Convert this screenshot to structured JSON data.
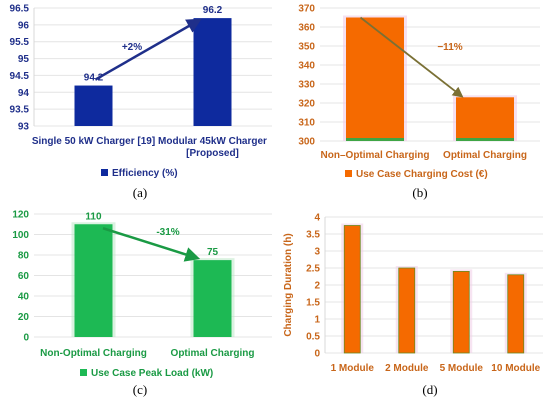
{
  "chart_data": [
    {
      "type": "bar",
      "panel_caption": "(a)",
      "categories": [
        "Single 50 kW Charger [19]",
        "Modular 45kW Charger [Proposed]"
      ],
      "category_lines": [
        [
          "Single 50 kW Charger [19]"
        ],
        [
          "Modular 45kW Charger",
          "[Proposed]"
        ]
      ],
      "series": [
        {
          "name": "Efficiency (%)",
          "values": [
            94.2,
            96.2
          ]
        }
      ],
      "data_labels": [
        "94.2",
        "96.2"
      ],
      "ylim": [
        93,
        96.5
      ],
      "yticks": [
        93,
        93.5,
        94,
        94.5,
        95,
        95.5,
        96,
        96.5
      ],
      "ytick_labels": [
        "93",
        "93.5",
        "94",
        "94.5",
        "95",
        "95.5",
        "96",
        "96.5"
      ],
      "annotation": "+2%",
      "legend_position": "bottom",
      "colors": {
        "bar": "#0e2a9e",
        "text": "#1f2f8a",
        "arrow": "#1f2f8a"
      }
    },
    {
      "type": "bar",
      "panel_caption": "(b)",
      "categories": [
        "Non–Optimal Charging",
        "Optimal Charging"
      ],
      "series": [
        {
          "name": "Use Case Charging Cost (€)",
          "values": [
            365,
            323
          ]
        }
      ],
      "ylim": [
        300,
        370
      ],
      "yticks": [
        300,
        310,
        320,
        330,
        340,
        350,
        360,
        370
      ],
      "ytick_labels": [
        "300",
        "310",
        "320",
        "330",
        "340",
        "350",
        "360",
        "370"
      ],
      "annotation": "−11%",
      "legend_position": "bottom",
      "colors": {
        "bar": "#f56a00",
        "text": "#c8661a",
        "arrow": "#7a7035",
        "base": "#3ea545"
      }
    },
    {
      "type": "bar",
      "panel_caption": "(c)",
      "categories": [
        "Non-Optimal Charging",
        "Optimal Charging"
      ],
      "series": [
        {
          "name": "Use Case Peak Load (kW)",
          "values": [
            110,
            75
          ]
        }
      ],
      "data_labels": [
        "110",
        "75"
      ],
      "ylim": [
        0,
        120
      ],
      "yticks": [
        0,
        20,
        40,
        60,
        80,
        100,
        120
      ],
      "ytick_labels": [
        "0",
        "20",
        "40",
        "60",
        "80",
        "100",
        "120"
      ],
      "annotation": "-31%",
      "legend_position": "bottom",
      "colors": {
        "bar": "#1db954",
        "text": "#1a9a44",
        "arrow": "#1a9a44"
      }
    },
    {
      "type": "bar",
      "panel_caption": "(d)",
      "categories": [
        "1 Module",
        "2 Module",
        "5 Module",
        "10 Module"
      ],
      "series": [
        {
          "values": [
            3.75,
            2.5,
            2.4,
            2.3
          ]
        }
      ],
      "ylabel": "Charging Duration (h)",
      "ylim": [
        0,
        4
      ],
      "yticks": [
        0,
        0.5,
        1,
        1.5,
        2,
        2.5,
        3,
        3.5,
        4
      ],
      "ytick_labels": [
        "0",
        "0.5",
        "1",
        "1.5",
        "2",
        "2.5",
        "3",
        "3.5",
        "4"
      ],
      "colors": {
        "bar": "#f56a00",
        "text": "#c8661a",
        "edge": "#6b8a1e"
      }
    }
  ]
}
